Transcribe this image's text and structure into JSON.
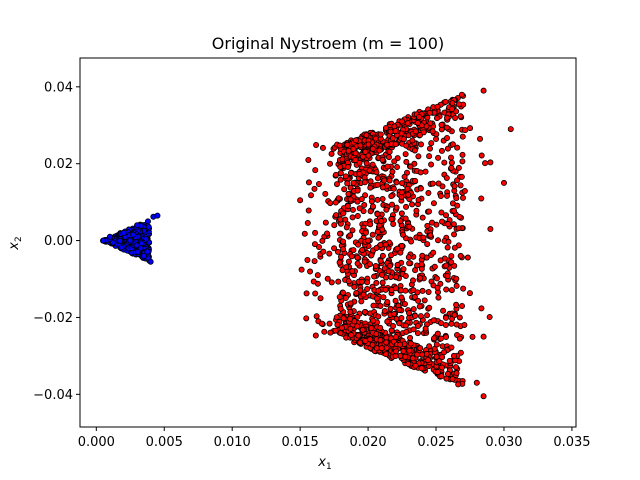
{
  "chart_data": {
    "type": "scatter",
    "title": "Original Nystroem (m = 100)",
    "xlabel": {
      "base": "x",
      "sub": "1"
    },
    "ylabel": {
      "base": "x",
      "sub": "2"
    },
    "xlim": [
      -0.0012,
      0.0353
    ],
    "ylim": [
      -0.0485,
      0.0475
    ],
    "x_ticks": [
      0.0,
      0.005,
      0.01,
      0.015,
      0.02,
      0.025,
      0.03,
      0.035
    ],
    "x_tick_labels": [
      "0.000",
      "0.005",
      "0.010",
      "0.015",
      "0.020",
      "0.025",
      "0.030",
      "0.035"
    ],
    "y_ticks": [
      -0.04,
      -0.02,
      0.0,
      0.02,
      0.04
    ],
    "y_tick_labels": [
      "−0.04",
      "−0.02",
      "0.00",
      "0.02",
      "0.04"
    ],
    "grid": false,
    "legend": "none",
    "series": [
      {
        "color": "#0000ff",
        "edge": "#000000",
        "shape": "cone",
        "apex": [
          0.0005,
          0.0
        ],
        "x_range": [
          0.0005,
          0.0045
        ],
        "half_width_slope": 1.55,
        "count": 320,
        "sample_points": [
          [
            0.0005,
            0.0
          ],
          [
            0.001,
            0.001
          ],
          [
            0.002,
            0.002
          ],
          [
            0.003,
            0.004
          ],
          [
            0.0038,
            0.005
          ],
          [
            0.0042,
            0.0062
          ],
          [
            0.0045,
            0.0065
          ],
          [
            0.004,
            -0.0055
          ],
          [
            0.0035,
            -0.004
          ],
          [
            0.0025,
            0.0
          ]
        ]
      },
      {
        "color": "#ff0000",
        "edge": "#000000",
        "shape": "band",
        "x_range": [
          0.0148,
          0.0305
        ],
        "upper_edge": [
          [
            0.018,
            0.025
          ],
          [
            0.022,
            0.031
          ],
          [
            0.0245,
            0.0345
          ],
          [
            0.0275,
            0.039
          ]
        ],
        "lower_edge": [
          [
            0.018,
            -0.025
          ],
          [
            0.022,
            -0.031
          ],
          [
            0.0245,
            -0.0345
          ],
          [
            0.0285,
            -0.04
          ]
        ],
        "count": 1500,
        "sample_points": [
          [
            0.015,
            0.0105
          ],
          [
            0.0158,
            0.0118
          ],
          [
            0.0161,
            0.002
          ],
          [
            0.0163,
            -0.009
          ],
          [
            0.0165,
            -0.015
          ],
          [
            0.0172,
            0.02
          ],
          [
            0.0285,
            0.039
          ],
          [
            0.0305,
            0.029
          ],
          [
            0.03,
            0.015
          ],
          [
            0.029,
            0.003
          ],
          [
            0.0285,
            -0.025
          ],
          [
            0.028,
            -0.037
          ],
          [
            0.0285,
            -0.0405
          ],
          [
            0.0225,
            0.031
          ],
          [
            0.021,
            -0.028
          ],
          [
            0.02,
            0.0
          ]
        ]
      }
    ]
  }
}
